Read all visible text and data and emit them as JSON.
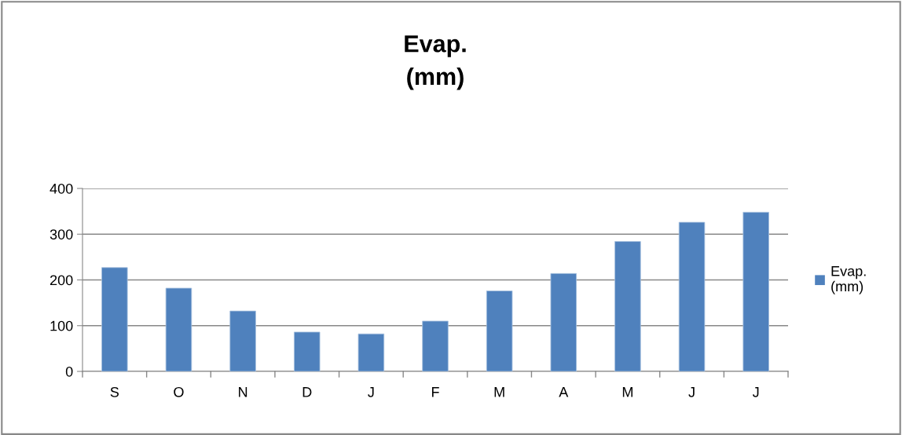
{
  "chart_data": {
    "type": "bar",
    "title": "Evap.\n(mm)",
    "categories": [
      "S",
      "O",
      "N",
      "D",
      "J",
      "F",
      "M",
      "A",
      "M",
      "J",
      "J"
    ],
    "series": [
      {
        "name": "Evap.\n(mm)",
        "color": "#4f81bd",
        "values": [
          227,
          182,
          132,
          86,
          82,
          110,
          176,
          214,
          284,
          326,
          348
        ]
      }
    ],
    "ylim": [
      0,
      400
    ],
    "yticks": [
      0,
      100,
      200,
      300,
      400
    ],
    "grid": "y",
    "legend": "right"
  }
}
